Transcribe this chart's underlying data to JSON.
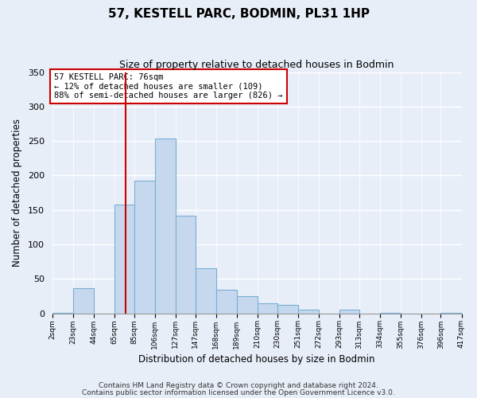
{
  "title": "57, KESTELL PARC, BODMIN, PL31 1HP",
  "subtitle": "Size of property relative to detached houses in Bodmin",
  "xlabel": "Distribution of detached houses by size in Bodmin",
  "ylabel": "Number of detached properties",
  "bin_edges": [
    2,
    23,
    44,
    65,
    85,
    106,
    127,
    147,
    168,
    189,
    210,
    230,
    251,
    272,
    293,
    313,
    334,
    355,
    376,
    396,
    417
  ],
  "bin_labels": [
    "2sqm",
    "23sqm",
    "44sqm",
    "65sqm",
    "85sqm",
    "106sqm",
    "127sqm",
    "147sqm",
    "168sqm",
    "189sqm",
    "210sqm",
    "230sqm",
    "251sqm",
    "272sqm",
    "293sqm",
    "313sqm",
    "334sqm",
    "355sqm",
    "376sqm",
    "396sqm",
    "417sqm"
  ],
  "counts": [
    1,
    37,
    0,
    158,
    192,
    254,
    142,
    65,
    34,
    25,
    15,
    12,
    5,
    0,
    5,
    0,
    1,
    0,
    0,
    1
  ],
  "bar_color": "#c5d8ee",
  "bar_edge_color": "#7aafd4",
  "vline_x": 76,
  "vline_color": "#cc0000",
  "annotation_title": "57 KESTELL PARC: 76sqm",
  "annotation_line1": "← 12% of detached houses are smaller (109)",
  "annotation_line2": "88% of semi-detached houses are larger (826) →",
  "annotation_box_color": "#ffffff",
  "annotation_box_edge": "#cc0000",
  "ylim": [
    0,
    350
  ],
  "yticks": [
    0,
    50,
    100,
    150,
    200,
    250,
    300,
    350
  ],
  "footer1": "Contains HM Land Registry data © Crown copyright and database right 2024.",
  "footer2": "Contains public sector information licensed under the Open Government Licence v3.0.",
  "bg_color": "#e8eef8"
}
